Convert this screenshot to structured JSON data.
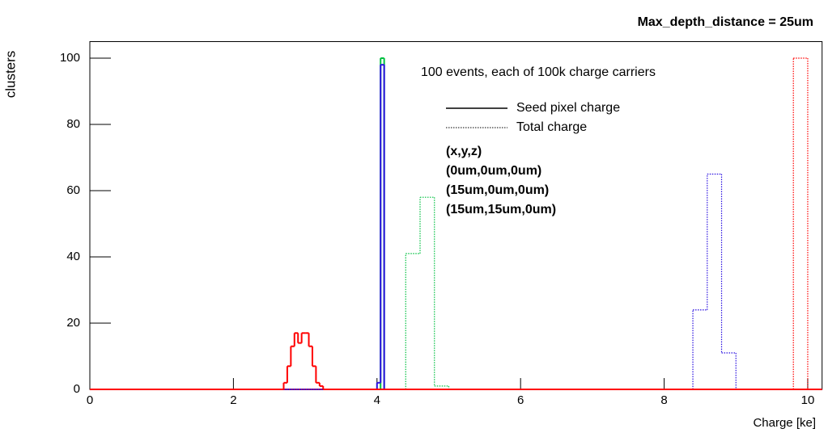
{
  "chart_data": {
    "type": "histogram",
    "title": "Max_depth_distance = 25um",
    "annotation": "100 events, each of 100k charge carriers",
    "x_label": "Charge [ke]",
    "y_label": "clusters",
    "xlim": [
      0,
      10.2
    ],
    "ylim": [
      0,
      105
    ],
    "xticks": [
      0,
      2,
      4,
      6,
      8,
      10
    ],
    "yticks": [
      0,
      20,
      40,
      60,
      80,
      100
    ],
    "styles": [
      {
        "name": "Seed pixel charge",
        "dash": "solid"
      },
      {
        "name": "Total charge",
        "dash": "dotted"
      }
    ],
    "legend_header": "(x,y,z)",
    "series": [
      {
        "name": "(0um,0um,0um)",
        "color": "#00c040",
        "seed": {
          "bins": [
            0,
            4.05,
            4.1,
            10.2
          ],
          "values": [
            0,
            100,
            0
          ]
        },
        "total": {
          "bins": [
            0,
            4.4,
            4.6,
            4.8,
            5.0,
            10.2
          ],
          "values": [
            0,
            41,
            58,
            1,
            0
          ]
        }
      },
      {
        "name": "(15um,0um,0um)",
        "color": "#2a10e0",
        "seed": {
          "bins": [
            0,
            4.0,
            4.05,
            4.1,
            10.2
          ],
          "values": [
            0,
            2,
            98,
            0
          ]
        },
        "total": {
          "bins": [
            0,
            8.4,
            8.6,
            8.8,
            9.0,
            10.2
          ],
          "values": [
            0,
            24,
            65,
            11,
            0
          ]
        }
      },
      {
        "name": "(15um,15um,0um)",
        "color": "#ff0000",
        "seed": {
          "bins": [
            0,
            2.7,
            2.75,
            2.8,
            2.85,
            2.9,
            2.95,
            3.0,
            3.05,
            3.1,
            3.15,
            3.2,
            3.25,
            10.2
          ],
          "values": [
            0,
            2,
            7,
            13,
            17,
            14,
            17,
            17,
            13,
            7,
            2,
            1,
            0
          ]
        },
        "total": {
          "bins": [
            0,
            9.8,
            10.0,
            10.2
          ],
          "values": [
            0,
            100,
            0
          ]
        }
      }
    ]
  }
}
